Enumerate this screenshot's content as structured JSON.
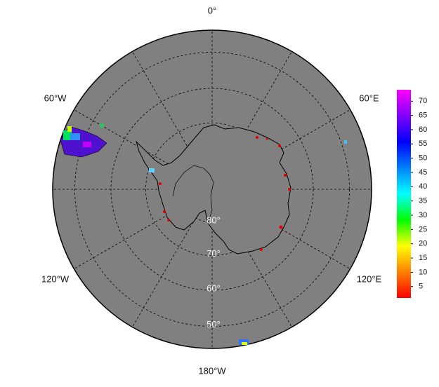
{
  "map": {
    "longitude_labels": [
      "0°",
      "60°E",
      "120°E",
      "180°W",
      "120°W",
      "60°W"
    ],
    "latitude_labels": [
      "80°",
      "70°",
      "60°",
      "50°"
    ],
    "colorbar": {
      "lim": [
        1,
        74
      ],
      "ticks": [
        5,
        10,
        15,
        20,
        25,
        30,
        35,
        40,
        45,
        50,
        55,
        60,
        65,
        70
      ],
      "colors": [
        "#ff0000",
        "#ff8000",
        "#ffff00",
        "#00ff00",
        "#00ffff",
        "#0080ff",
        "#0000ff",
        "#8000ff",
        "#ff00ff"
      ]
    }
  }
}
